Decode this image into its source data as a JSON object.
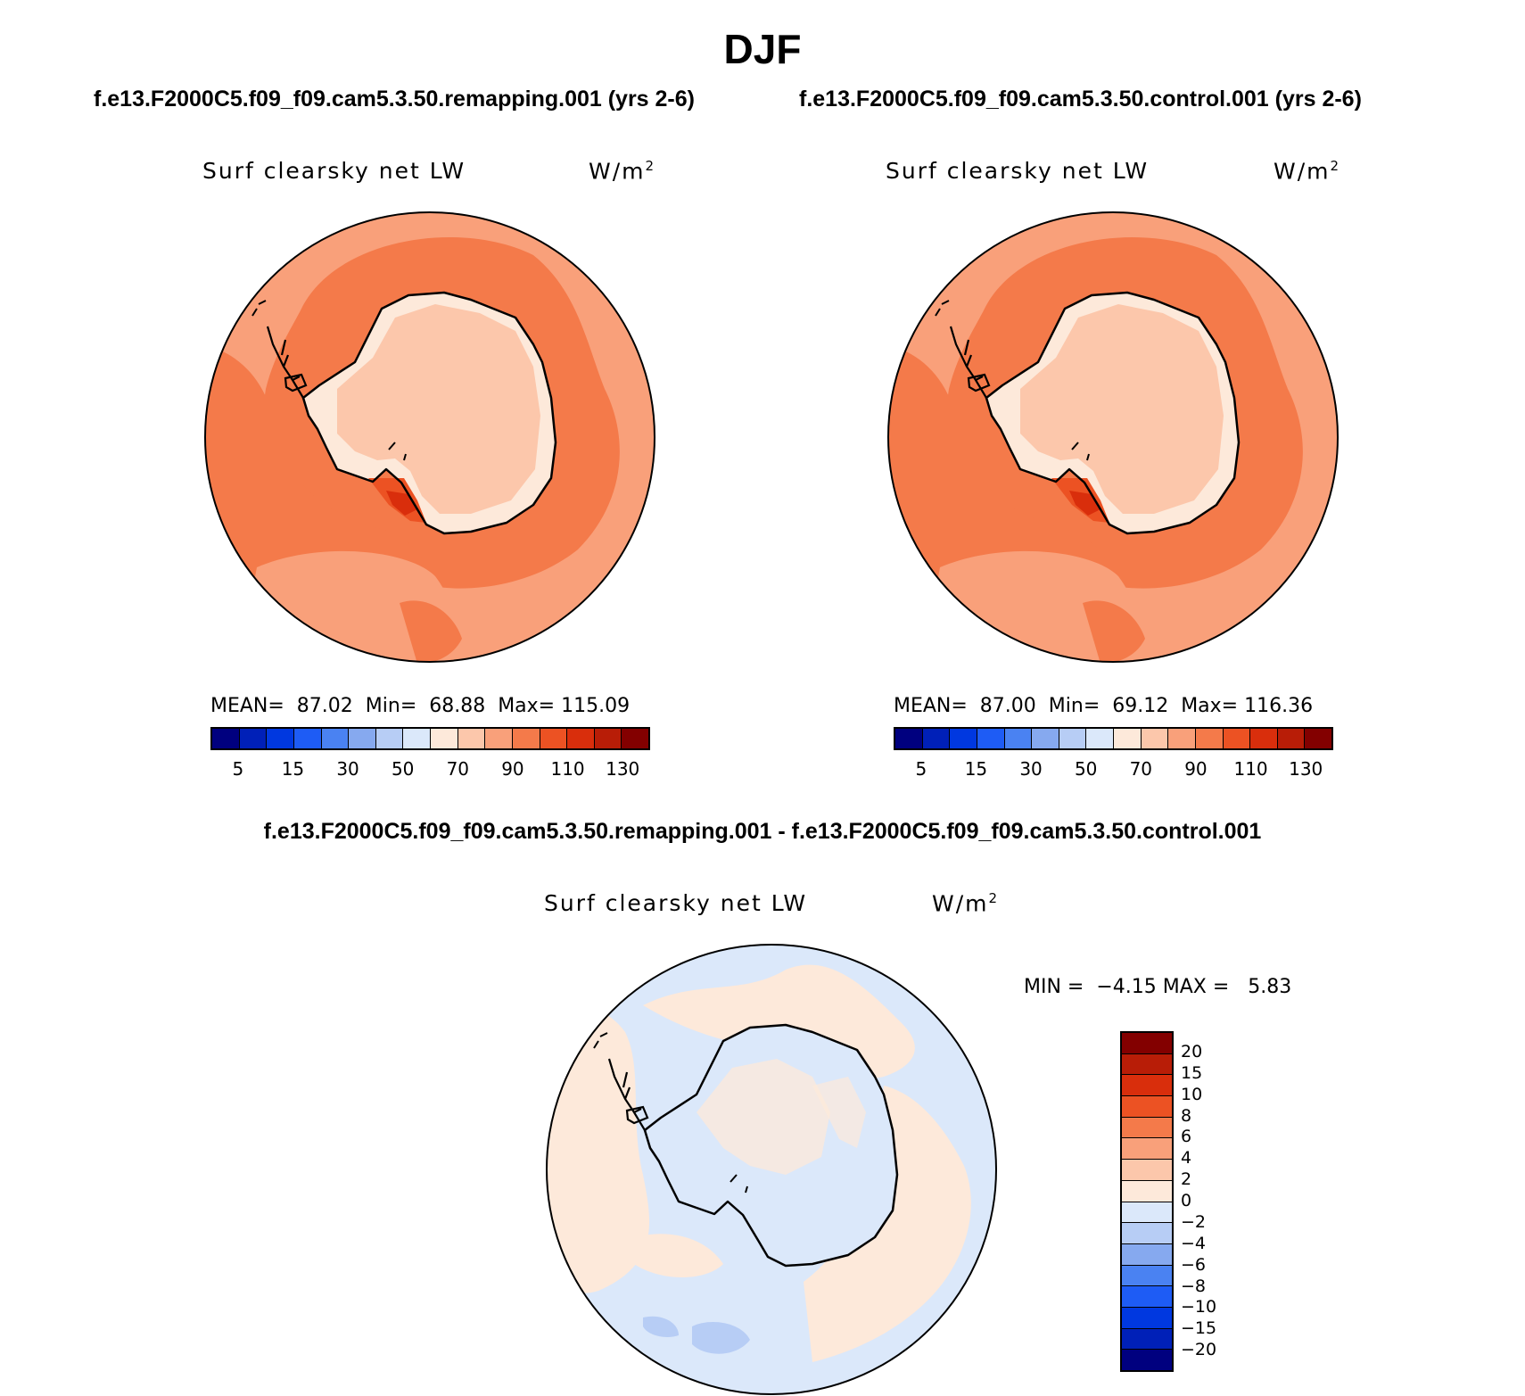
{
  "figure": {
    "season": "DJF",
    "left_case_title": "f.e13.F2000C5.f09_f09.cam5.3.50.remapping.001 (yrs 2-6)",
    "right_case_title": "f.e13.F2000C5.f09_f09.cam5.3.50.control.001 (yrs 2-6)",
    "diff_title": "f.e13.F2000C5.f09_f09.cam5.3.50.remapping.001 - f.e13.F2000C5.f09_f09.cam5.3.50.control.001"
  },
  "panels": {
    "left": {
      "label": "Surf clearsky net LW",
      "units": "W/m",
      "units_sup": "2",
      "stats": "MEAN=  87.02  Min=  68.88  Max= 115.09"
    },
    "right": {
      "label": "Surf clearsky net LW",
      "units": "W/m",
      "units_sup": "2",
      "stats": "MEAN=  87.00  Min=  69.12  Max= 116.36"
    },
    "diff": {
      "label": "Surf clearsky net LW",
      "units": "W/m",
      "units_sup": "2",
      "stats": "MIN =  −4.15 MAX =   5.83"
    }
  },
  "colorbar_main": {
    "colors": [
      "#00007f",
      "#0020b8",
      "#0038e0",
      "#1e5cf5",
      "#4a82f2",
      "#86a9ef",
      "#b7cdf5",
      "#dbe8fa",
      "#fde9da",
      "#fcc7ab",
      "#f9a07a",
      "#f47a4a",
      "#ec5223",
      "#d92e0c",
      "#b81d07",
      "#830000"
    ],
    "ticks": [
      "5",
      "15",
      "30",
      "50",
      "70",
      "90",
      "110",
      "130"
    ]
  },
  "colorbar_diff": {
    "colors": [
      "#830000",
      "#b81d07",
      "#d92e0c",
      "#ec5223",
      "#f47a4a",
      "#f9a07a",
      "#fcc7ab",
      "#fde9da",
      "#dbe8fa",
      "#b7cdf5",
      "#86a9ef",
      "#4a82f2",
      "#1e5cf5",
      "#0038e0",
      "#0020b8",
      "#00007f"
    ],
    "ticks": [
      "20",
      "15",
      "10",
      "8",
      "6",
      "4",
      "2",
      "0",
      "−2",
      "−4",
      "−6",
      "−8",
      "−10",
      "−15",
      "−20"
    ]
  }
}
